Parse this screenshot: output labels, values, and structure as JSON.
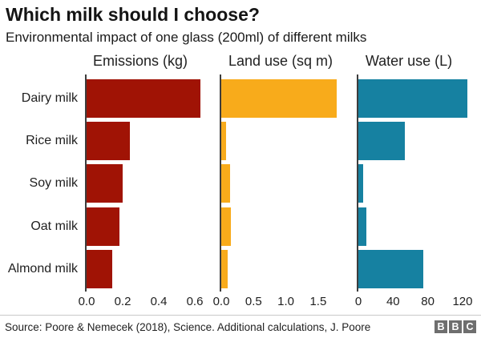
{
  "chart_data": {
    "type": "bar",
    "title": "Which milk should I choose?",
    "subtitle": "Environmental impact of one glass (200ml) of different milks",
    "categories": [
      "Dairy milk",
      "Rice milk",
      "Soy milk",
      "Oat milk",
      "Almond milk"
    ],
    "orientation": "horizontal",
    "grid": false,
    "legend": null,
    "panels": [
      {
        "title": "Emissions (kg)",
        "color": "#a01305",
        "values": [
          0.63,
          0.24,
          0.2,
          0.18,
          0.14
        ],
        "tick_labels": [
          "0.0",
          "0.2",
          "0.4",
          "0.6"
        ],
        "tick_values": [
          0,
          0.2,
          0.4,
          0.6
        ],
        "xlim": [
          0,
          0.69
        ]
      },
      {
        "title": "Land use (sq m)",
        "color": "#f8ab1b",
        "values": [
          1.79,
          0.07,
          0.13,
          0.15,
          0.1
        ],
        "tick_labels": [
          "0.0",
          "0.5",
          "1.0",
          "1.5"
        ],
        "tick_values": [
          0,
          0.5,
          1.0,
          1.5
        ],
        "xlim": [
          0,
          1.93
        ]
      },
      {
        "title": "Water use (L)",
        "color": "#1681a1",
        "values": [
          125.6,
          53.9,
          5.6,
          9.6,
          74.3
        ],
        "tick_labels": [
          "0",
          "40",
          "80",
          "120"
        ],
        "tick_values": [
          0,
          40,
          80,
          120
        ],
        "xlim": [
          0,
          141
        ]
      }
    ]
  },
  "footer": {
    "source": "Source: Poore & Nemecek (2018), Science. Additional calculations, J. Poore",
    "logo_letters": [
      "B",
      "B",
      "C"
    ]
  }
}
